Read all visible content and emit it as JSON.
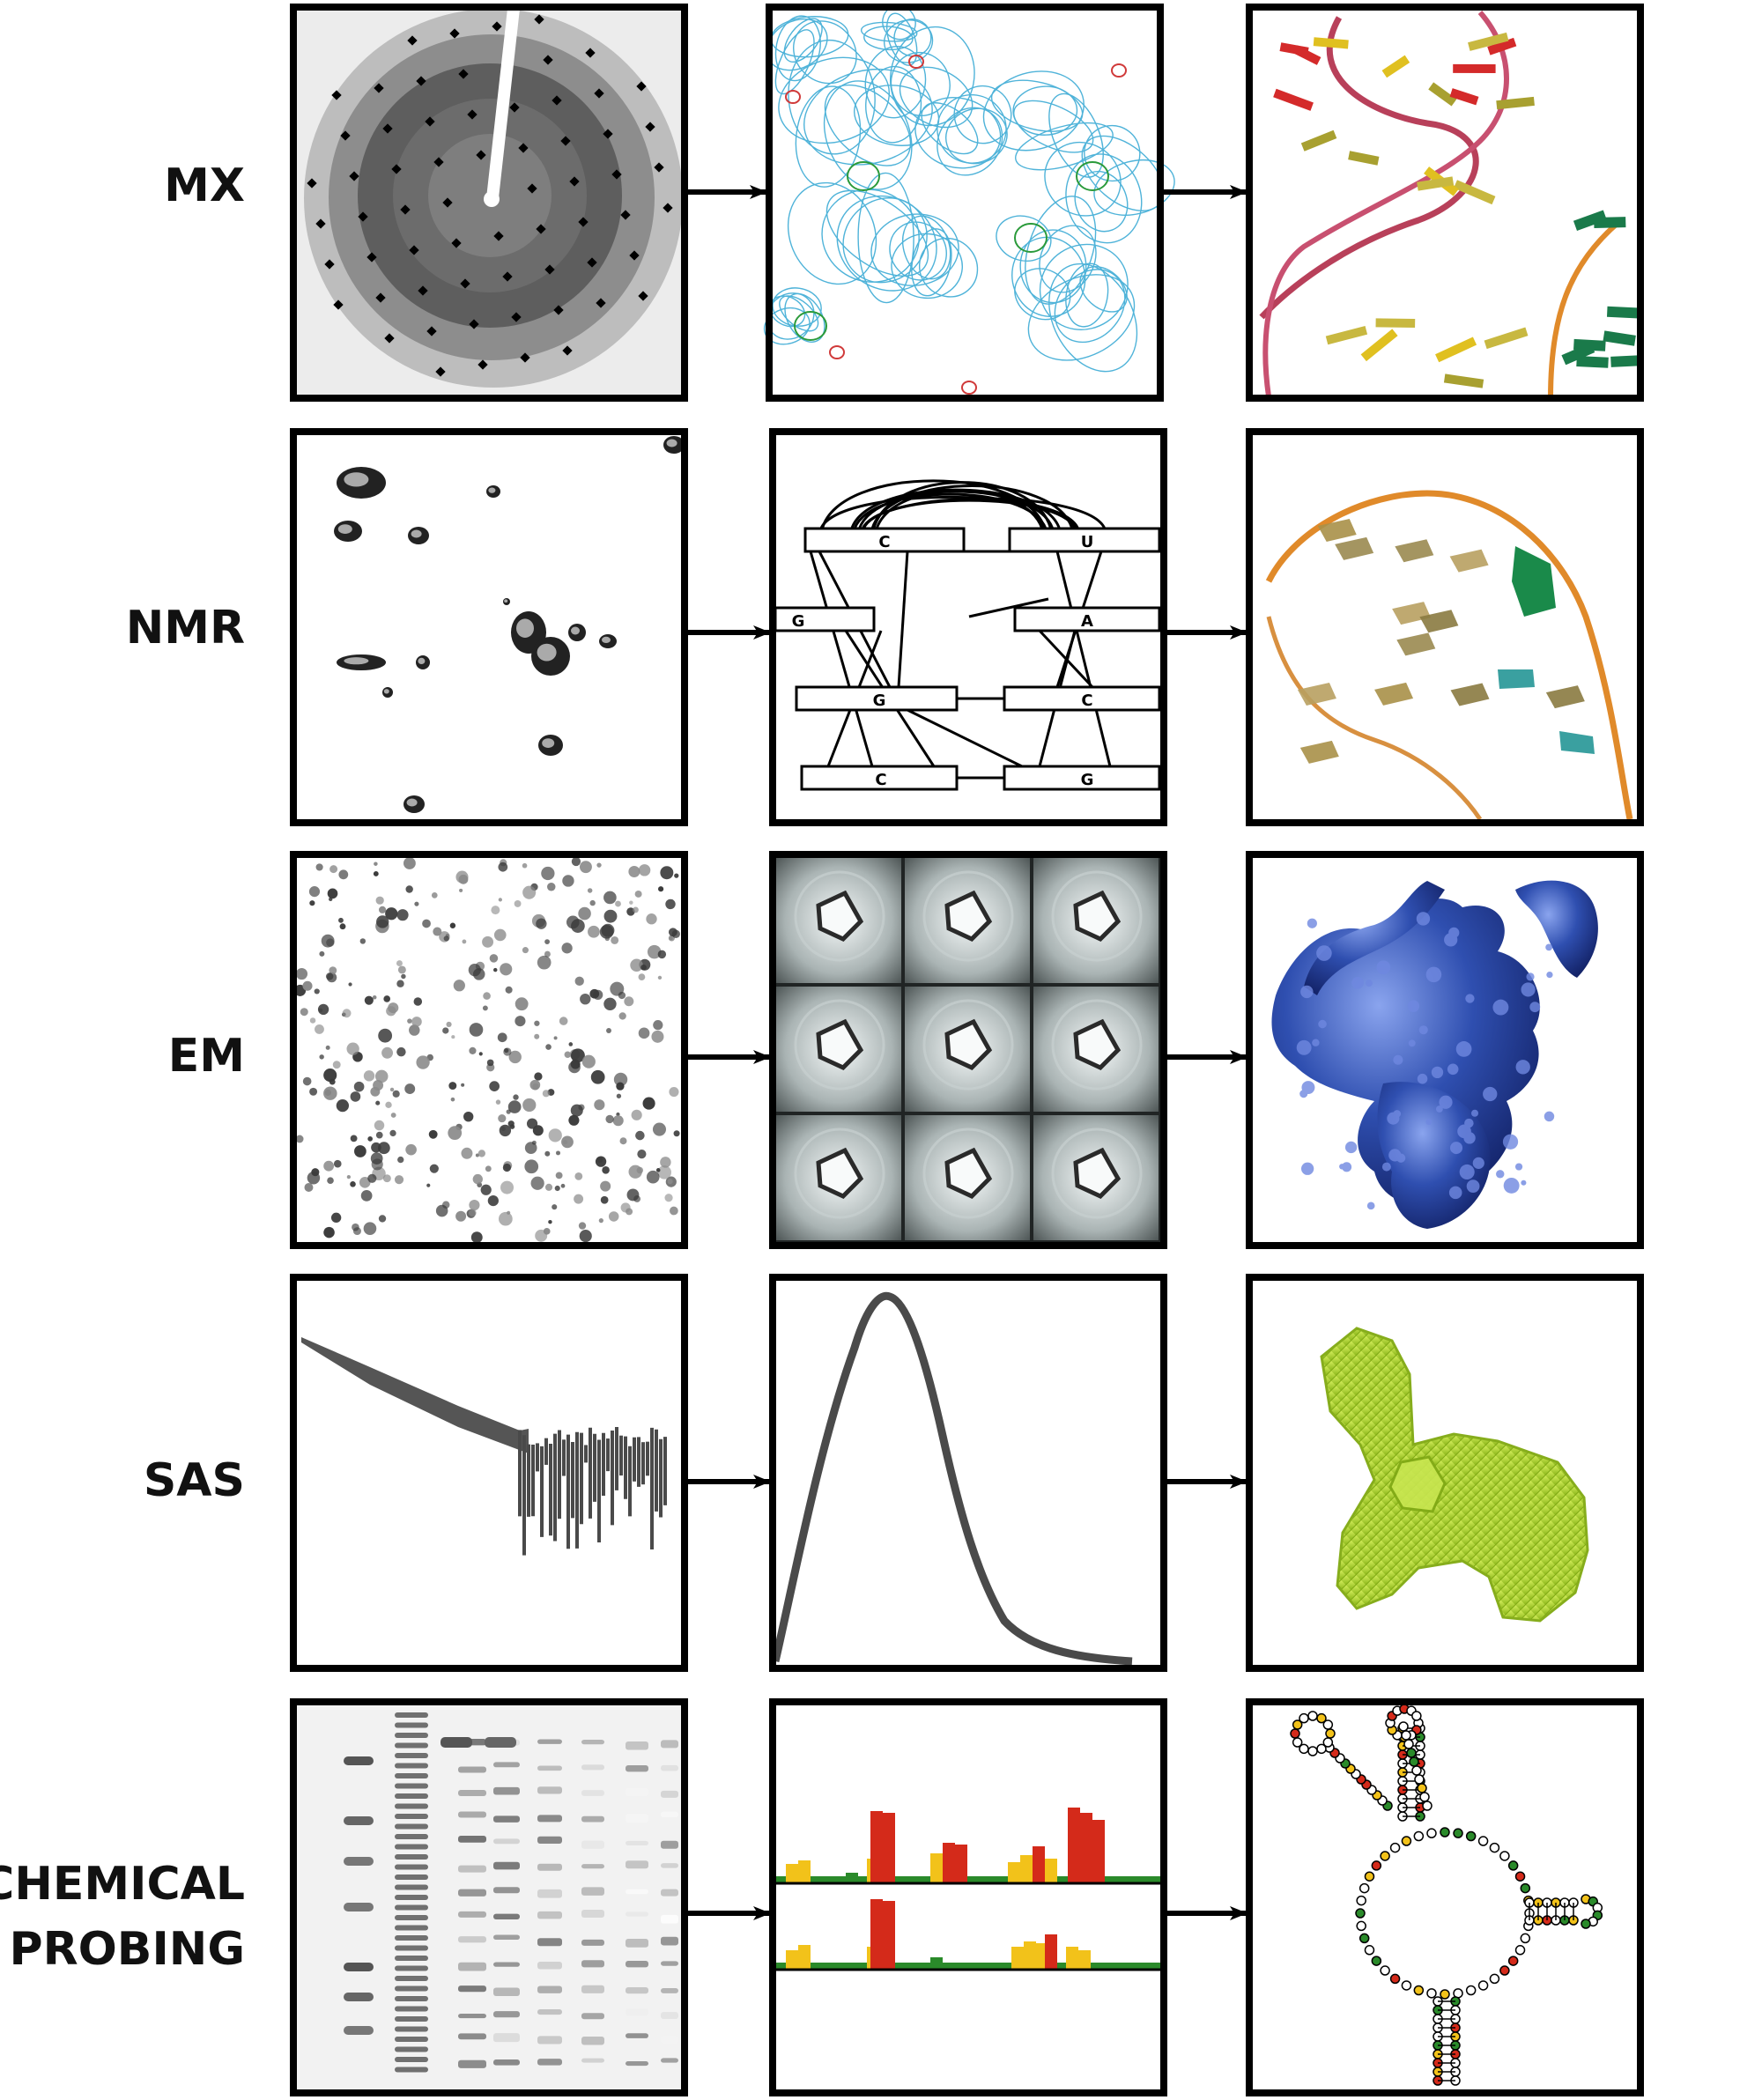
{
  "rows": [
    {
      "label": "MX"
    },
    {
      "label": "NMR",
      "bases_left": [
        "C",
        "G",
        "G",
        "C"
      ],
      "bases_right": [
        "U",
        "A",
        "C",
        "G"
      ]
    },
    {
      "label": "EM"
    },
    {
      "label": "SAS"
    },
    {
      "label_lines": [
        "CHEMICAL",
        "PROBING"
      ]
    }
  ],
  "colors": {
    "frame": "#000000",
    "density_mesh": "#4fb3d9",
    "positive_density": "#2a9a3a",
    "negative_density": "#d03a3a",
    "em_map": "#2a48a8",
    "sas_envelope": "#a8d02a",
    "probe_high": "#d42a1a",
    "probe_mid": "#f2c21a",
    "probe_low": "#2a8a2a",
    "rna_backbone": "#e08a2a"
  }
}
